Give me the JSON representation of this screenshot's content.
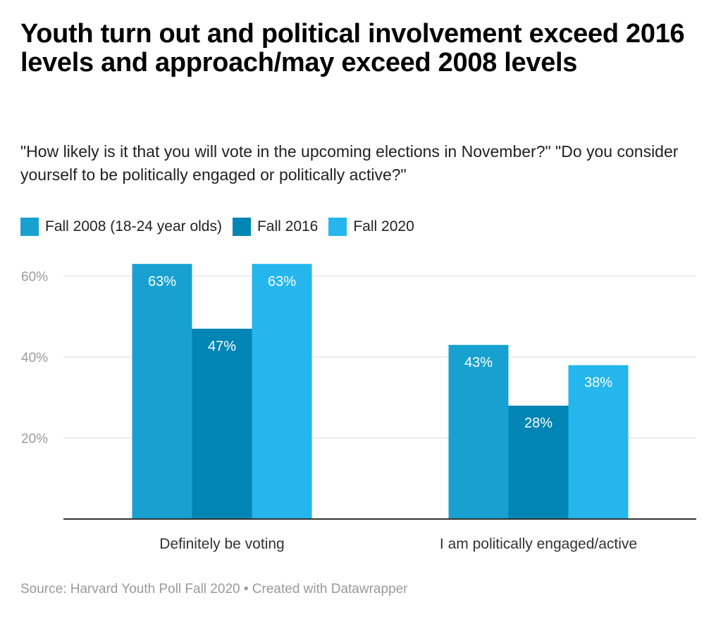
{
  "title": "Youth turn out and political involvement exceed 2016 levels and approach/may exceed 2008 levels",
  "subtitle": "\"How likely is it that you will vote in the upcoming elections in November?\" \"Do you consider yourself to be politically engaged or politically active?\"",
  "legend": [
    {
      "label": "Fall 2008 (18-24 year olds)",
      "color": "#18a1d0"
    },
    {
      "label": "Fall 2016",
      "color": "#0085b4"
    },
    {
      "label": "Fall 2020",
      "color": "#24b6ec"
    }
  ],
  "source": "Source: Harvard Youth Poll Fall 2020 • Created with Datawrapper",
  "chart_data": {
    "type": "bar",
    "categories": [
      "Definitely be voting",
      "I am politically engaged/active"
    ],
    "series": [
      {
        "name": "Fall 2008 (18-24 year olds)",
        "values": [
          63,
          43
        ],
        "color": "#18a1d0"
      },
      {
        "name": "Fall 2016",
        "values": [
          47,
          28
        ],
        "color": "#0085b4"
      },
      {
        "name": "Fall 2020",
        "values": [
          63,
          38
        ],
        "color": "#24b6ec"
      }
    ],
    "value_format": "{v}%",
    "yticks": [
      "20%",
      "40%",
      "60%"
    ],
    "ytick_values": [
      20,
      40,
      60
    ],
    "ylim": [
      0,
      63
    ],
    "grid": true,
    "legend_position": "top-left"
  }
}
